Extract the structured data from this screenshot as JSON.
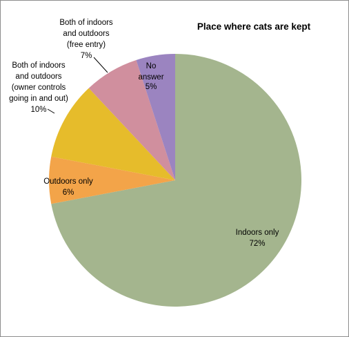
{
  "chart_data": {
    "type": "pie",
    "title": "Place where cats are kept",
    "categories": [
      "Indoors only",
      "Outdoors only",
      "Both of indoors\nand outdoors\n(owner controls\ngoing in and out)",
      "Both of indoors\nand outdoors\n(free entry)",
      "No\nanswer"
    ],
    "values": [
      72,
      6,
      10,
      7,
      5
    ],
    "value_labels": [
      "72%",
      "6%",
      "10%",
      "7%",
      "5%"
    ],
    "colors": [
      "#a4b58e",
      "#f3a449",
      "#e6bc2b",
      "#d08f9e",
      "#9b84c0"
    ]
  }
}
